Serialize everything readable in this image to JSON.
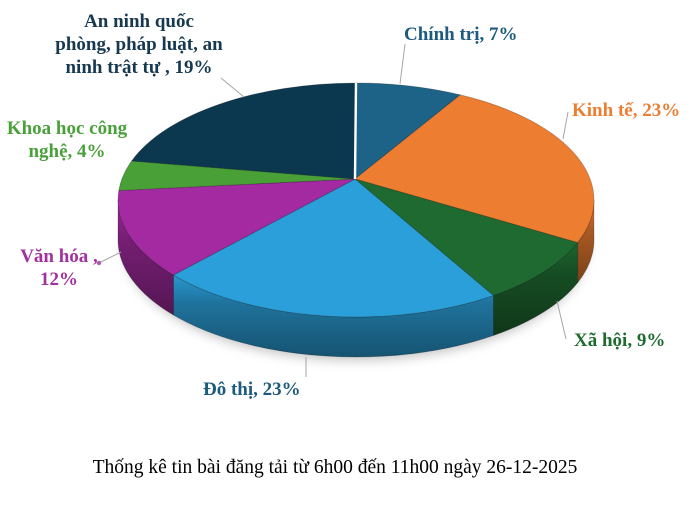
{
  "chart_data": {
    "type": "pie",
    "style": "3d",
    "start_angle_deg": 0,
    "direction": "clockwise",
    "unit": "%",
    "title": "Thống kê tin bài đăng tải từ 6h00 đến 11h00 ngày 26-12-2025",
    "legend_position": "none",
    "slices": [
      {
        "name": "Chính trị",
        "value": 7,
        "label": "Chính trị, 7%",
        "color": "#1C6387",
        "label_color": "#1C5A7E"
      },
      {
        "name": "Kinh tế",
        "value": 23,
        "label": "Kinh tế, 23%",
        "color": "#ED7D31",
        "label_color": "#ED7D31"
      },
      {
        "name": "Xã hội",
        "value": 9,
        "label": "Xã hội, 9%",
        "color": "#1E6A31",
        "label_color": "#1E6B30"
      },
      {
        "name": "Đô thị",
        "value": 23,
        "label": "Đô thị, 23%",
        "color": "#2B9FD9",
        "label_color": "#1C5A7E"
      },
      {
        "name": "Văn hóa",
        "value": 12,
        "label": "Văn hóa ,\n12%",
        "color": "#A32AA0",
        "label_color": "#A3309F"
      },
      {
        "name": "Khoa học công nghệ",
        "value": 4,
        "label": "Khoa học công\nnghệ, 4%",
        "color": "#49A037",
        "label_color": "#4AA03A"
      },
      {
        "name": "An ninh quốc phòng, pháp luật, an ninh trật tự",
        "value": 19,
        "label": "An ninh quốc\nphòng, pháp luật, an\nninh trật tự , 19%",
        "color": "#0C384F",
        "label_color": "#173950"
      }
    ]
  }
}
